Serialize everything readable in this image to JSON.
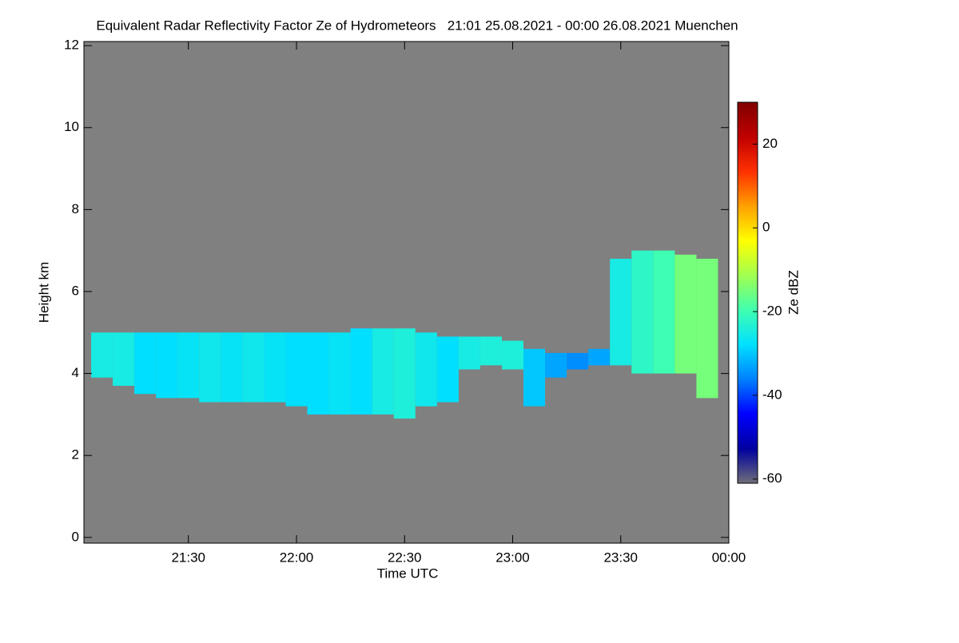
{
  "chart_data": {
    "type": "heatmap",
    "title": "Equivalent Radar Reflectivity Factor Ze of Hydrometeors   21:01 25.08.2021 - 00:00 26.08.2021 Muenchen",
    "x_label": "Time UTC",
    "y_label": "Height km",
    "z_label": "Ze dBZ",
    "background": "#808080",
    "xlim": [
      21.0167,
      24.0
    ],
    "xticks": [
      {
        "value": 21.5,
        "label": "21:30"
      },
      {
        "value": 22.0,
        "label": "22:00"
      },
      {
        "value": 22.5,
        "label": "22:30"
      },
      {
        "value": 23.0,
        "label": "23:00"
      },
      {
        "value": 23.5,
        "label": "23:30"
      },
      {
        "value": 24.0,
        "label": "00:00"
      }
    ],
    "ylim": [
      -0.14,
      12.1
    ],
    "yticks": [
      0,
      2,
      4,
      6,
      8,
      10,
      12
    ],
    "zlim": [
      -61,
      30
    ],
    "zticks": [
      -60,
      -40,
      -20,
      0,
      20
    ],
    "colormap": [
      "#6e6e78",
      "#0000a0",
      "#0000ff",
      "#0080ff",
      "#00e0ff",
      "#40ffb0",
      "#a0ff50",
      "#ffff00",
      "#ffa000",
      "#ff3000",
      "#c00000",
      "#800000"
    ],
    "x": [
      21.1,
      21.2,
      21.3,
      21.4,
      21.5,
      21.6,
      21.7,
      21.8,
      21.9,
      22.0,
      22.1,
      22.2,
      22.3,
      22.4,
      22.5,
      22.6,
      22.7,
      22.8,
      22.9,
      23.0,
      23.1,
      23.2,
      23.3,
      23.4,
      23.5,
      23.6,
      23.7,
      23.8,
      23.9
    ],
    "base": [
      3.9,
      3.7,
      3.5,
      3.4,
      3.4,
      3.3,
      3.3,
      3.3,
      3.3,
      3.2,
      3.0,
      3.0,
      3.0,
      3.0,
      2.9,
      3.2,
      3.3,
      4.1,
      4.2,
      4.1,
      3.2,
      3.9,
      4.1,
      4.2,
      4.2,
      4.0,
      4.0,
      4.0,
      3.4
    ],
    "top": [
      5.0,
      5.0,
      5.0,
      5.0,
      5.0,
      5.0,
      5.0,
      5.0,
      5.0,
      5.0,
      5.0,
      5.0,
      5.1,
      5.1,
      5.1,
      5.0,
      4.9,
      4.9,
      4.9,
      4.8,
      4.6,
      4.5,
      4.5,
      4.6,
      6.8,
      7.0,
      7.0,
      6.9,
      6.8
    ],
    "values": [
      -25,
      -25,
      -28,
      -28,
      -27,
      -26,
      -27,
      -26,
      -27,
      -28,
      -28,
      -27,
      -28,
      -25,
      -24,
      -26,
      -28,
      -25,
      -24,
      -24,
      -30,
      -33,
      -35,
      -33,
      -25,
      -22,
      -20,
      -15,
      -15
    ]
  }
}
